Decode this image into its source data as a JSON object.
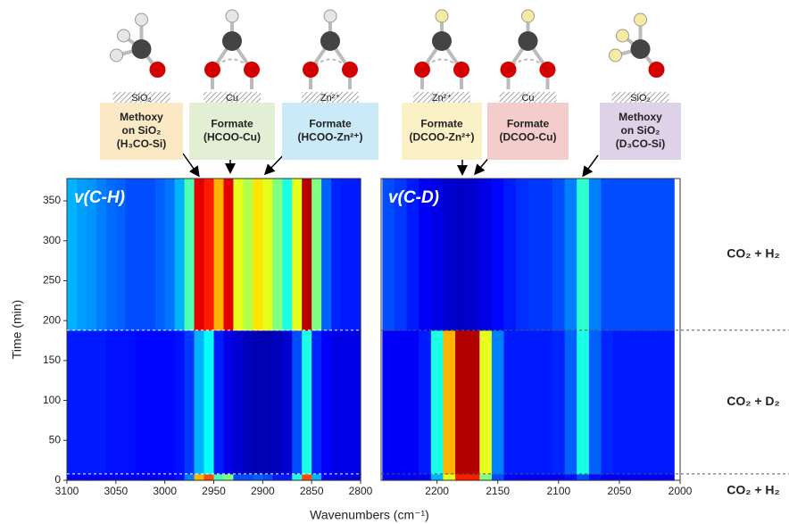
{
  "chart_data": [
    {
      "type": "heatmap",
      "panel_label": "v(C-H)",
      "x": [
        3095,
        3085,
        3075,
        3065,
        3055,
        3045,
        3035,
        3025,
        3015,
        3005,
        2995,
        2985,
        2975,
        2965,
        2955,
        2945,
        2935,
        2925,
        2915,
        2905,
        2895,
        2885,
        2875,
        2865,
        2855,
        2845,
        2835,
        2825,
        2815,
        2805
      ],
      "ybins": [
        0,
        8,
        188,
        378
      ],
      "z": [
        [
          0.12,
          0.12,
          0.12,
          0.12,
          0.12,
          0.12,
          0.12,
          0.12,
          0.12,
          0.12,
          0.12,
          0.14,
          0.25,
          0.7,
          0.8,
          0.45,
          0.5,
          0.2,
          0.2,
          0.22,
          0.2,
          0.15,
          0.15,
          0.4,
          0.8,
          0.3,
          0.12,
          0.1,
          0.1,
          0.1
        ],
        [
          0.15,
          0.15,
          0.15,
          0.15,
          0.14,
          0.14,
          0.14,
          0.13,
          0.13,
          0.13,
          0.13,
          0.14,
          0.18,
          0.3,
          0.38,
          0.15,
          0.1,
          0.08,
          0.06,
          0.05,
          0.05,
          0.06,
          0.08,
          0.2,
          0.4,
          0.16,
          0.12,
          0.1,
          0.1,
          0.1
        ],
        [
          0.3,
          0.28,
          0.27,
          0.25,
          0.23,
          0.22,
          0.2,
          0.2,
          0.2,
          0.22,
          0.24,
          0.3,
          0.45,
          0.9,
          0.85,
          0.7,
          0.9,
          0.6,
          0.55,
          0.65,
          0.6,
          0.5,
          0.4,
          0.6,
          0.95,
          0.5,
          0.22,
          0.16,
          0.15,
          0.15
        ]
      ],
      "xlim": [
        3100,
        2800
      ],
      "xticks": [
        3100,
        3050,
        3000,
        2950,
        2900,
        2850,
        2800
      ],
      "ylim": [
        0,
        378
      ],
      "yticks": [
        0,
        50,
        100,
        150,
        200,
        250,
        300,
        350
      ],
      "ylabel": "Time (min)"
    },
    {
      "type": "heatmap",
      "panel_label": "v(C-D)",
      "x": [
        2240,
        2230,
        2220,
        2210,
        2200,
        2190,
        2180,
        2170,
        2160,
        2150,
        2140,
        2130,
        2120,
        2110,
        2100,
        2090,
        2080,
        2070,
        2060,
        2050,
        2040,
        2030,
        2020,
        2010
      ],
      "ybins": [
        0,
        8,
        188,
        378
      ],
      "z": [
        [
          0.12,
          0.12,
          0.12,
          0.12,
          0.3,
          0.6,
          0.85,
          0.85,
          0.5,
          0.2,
          0.13,
          0.12,
          0.12,
          0.12,
          0.12,
          0.14,
          0.2,
          0.14,
          0.12,
          0.12,
          0.12,
          0.12,
          0.12,
          0.12
        ],
        [
          0.12,
          0.12,
          0.12,
          0.15,
          0.4,
          0.7,
          0.95,
          0.95,
          0.6,
          0.25,
          0.15,
          0.15,
          0.15,
          0.15,
          0.16,
          0.22,
          0.4,
          0.22,
          0.16,
          0.15,
          0.15,
          0.15,
          0.15,
          0.15
        ],
        [
          0.2,
          0.18,
          0.15,
          0.12,
          0.1,
          0.08,
          0.07,
          0.08,
          0.1,
          0.13,
          0.15,
          0.17,
          0.18,
          0.18,
          0.2,
          0.25,
          0.42,
          0.25,
          0.2,
          0.2,
          0.2,
          0.2,
          0.2,
          0.2
        ]
      ],
      "xlim": [
        2246,
        2000
      ],
      "xticks": [
        2200,
        2150,
        2100,
        2050,
        2000
      ],
      "ylim": [
        0,
        378
      ],
      "xlabel": "Wavenumbers (cm⁻¹)",
      "conditions": [
        "CO₂ + H₂",
        "CO₂ + D₂",
        "CO₂ + H₂"
      ]
    }
  ],
  "species": [
    {
      "substrate": "SiO₂",
      "lines": [
        "Methoxy",
        "on SiO₂",
        "(H₃CO-Si)"
      ],
      "color": "#fbe9c6"
    },
    {
      "substrate": "Cu",
      "lines": [
        "Formate",
        "(HCOO-Cu)"
      ],
      "color": "#e2efd5"
    },
    {
      "substrate": "Zn²⁺",
      "lines": [
        "Formate",
        "(HCOO-Zn²⁺)"
      ],
      "color": "#c9eaf6"
    },
    {
      "substrate": "Zn²⁺",
      "lines": [
        "Formate",
        "(DCOO-Zn²⁺)"
      ],
      "color": "#fbf1c6"
    },
    {
      "substrate": "Cu",
      "lines": [
        "Formate",
        "(DCOO-Cu)"
      ],
      "color": "#f3cccc"
    },
    {
      "substrate": "SiO₂",
      "lines": [
        "Methoxy",
        "on SiO₂",
        "(D₃CO-Si)"
      ],
      "color": "#ddd2e8"
    }
  ]
}
